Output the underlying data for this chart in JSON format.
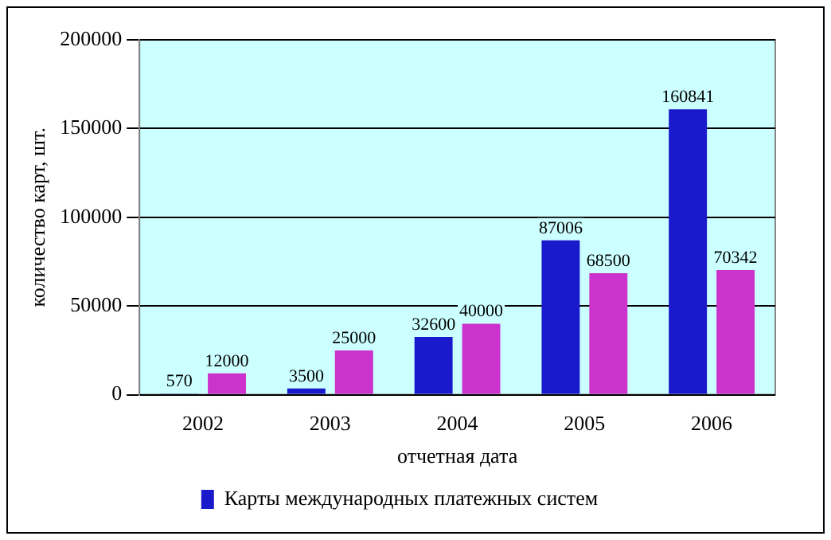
{
  "chart_data": {
    "type": "bar",
    "xlabel": "отчетная дата",
    "ylabel": "количество карт, шт.",
    "categories": [
      "2002",
      "2003",
      "2004",
      "2005",
      "2006"
    ],
    "series": [
      {
        "name": "Карты международных платежных систем",
        "color": "#1a1acc",
        "values": [
          570,
          3500,
          32600,
          87006,
          160841
        ]
      },
      {
        "color": "#cc33cc",
        "values": [
          12000,
          25000,
          40000,
          68500,
          70342
        ]
      }
    ],
    "ylim": [
      0,
      200000
    ],
    "yticks": [
      0,
      50000,
      100000,
      150000,
      200000
    ],
    "grid": "y",
    "legend": "bottom",
    "data_labels": true
  }
}
